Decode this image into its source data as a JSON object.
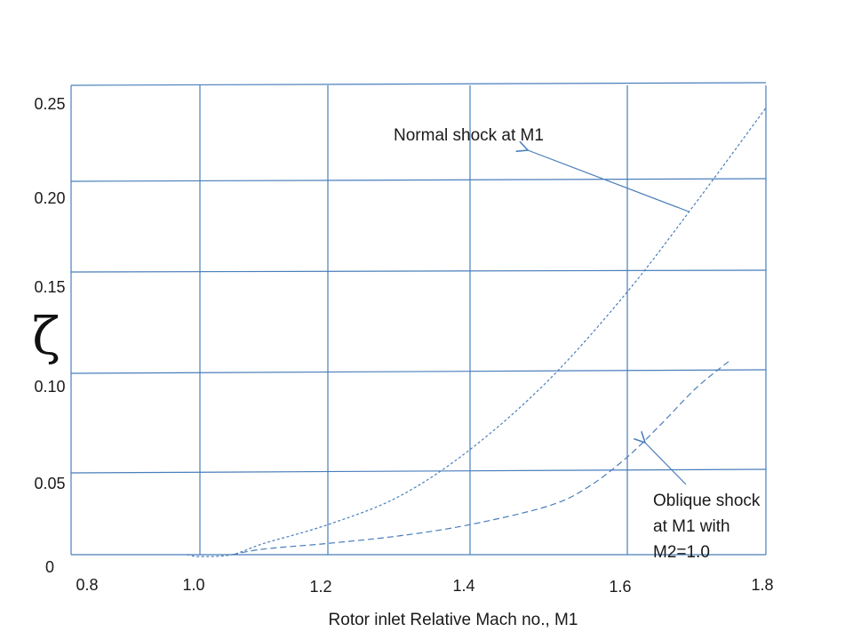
{
  "chart_data": {
    "type": "line",
    "xlabel": "Rotor inlet Relative Mach no., M1",
    "ylabel": "ζ",
    "xlim": [
      0.8,
      1.8
    ],
    "ylim": [
      0,
      0.25
    ],
    "x_ticks": [
      {
        "value": 0.8,
        "label": "0.8"
      },
      {
        "value": 1.0,
        "label": "1.0"
      },
      {
        "value": 1.2,
        "label": "1.2"
      },
      {
        "value": 1.4,
        "label": "1.4"
      },
      {
        "value": 1.6,
        "label": "1.6"
      },
      {
        "value": 1.8,
        "label": "1.8"
      }
    ],
    "y_ticks": [
      {
        "value": 0,
        "label": "0"
      },
      {
        "value": 0.05,
        "label": "0.05"
      },
      {
        "value": 0.1,
        "label": "0.10"
      },
      {
        "value": 0.15,
        "label": "0.15"
      },
      {
        "value": 0.2,
        "label": "0.20"
      },
      {
        "value": 0.25,
        "label": "0.25"
      }
    ],
    "grid": true,
    "line_color": "#4a7ebb",
    "series": [
      {
        "name": "Normal shock at M1",
        "style": "dotted",
        "x": [
          0.98,
          1.0,
          1.05,
          1.1,
          1.2,
          1.3,
          1.4,
          1.5,
          1.6,
          1.7,
          1.8
        ],
        "y": [
          0.0,
          -0.001,
          0.0,
          0.006,
          0.016,
          0.031,
          0.056,
          0.093,
          0.14,
          0.188,
          0.238
        ]
      },
      {
        "name": "Oblique shock at M1 with M2=1.0",
        "style": "dashed",
        "x": [
          1.05,
          1.1,
          1.2,
          1.3,
          1.4,
          1.5,
          1.55,
          1.6,
          1.65,
          1.7,
          1.75
        ],
        "y": [
          0.0,
          0.003,
          0.006,
          0.01,
          0.016,
          0.026,
          0.036,
          0.052,
          0.07,
          0.089,
          0.104
        ]
      }
    ],
    "annotations": [
      {
        "lines": [
          "Normal shock at M1"
        ],
        "target_series": 0,
        "target_x": 1.7
      },
      {
        "lines": [
          "Oblique shock",
          "at M1 with",
          "M2=1.0"
        ],
        "target_series": 1,
        "target_x": 1.64
      }
    ]
  }
}
